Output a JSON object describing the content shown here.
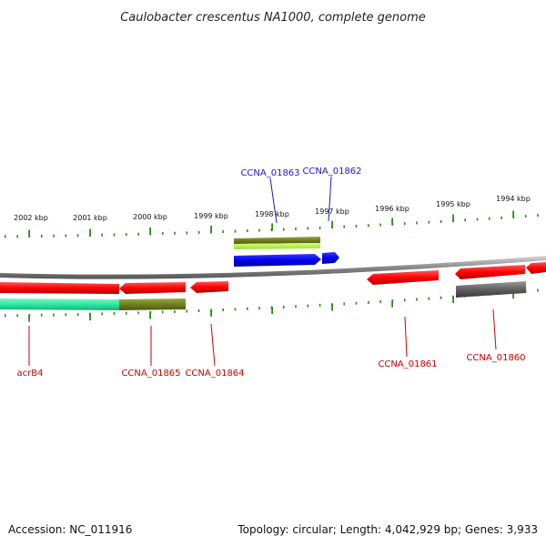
{
  "title": "Caulobacter crescentus NA1000, complete genome",
  "footer": {
    "accession": "Accession: NC_011916",
    "summary": "Topology: circular; Length: 4,042,929 bp; Genes: 3,933"
  },
  "ruler_labels": [
    "2002 kbp",
    "2001 kbp",
    "2000 kbp",
    "1999 kbp",
    "1998 kbp",
    "1997 kbp",
    "1996 kbp",
    "1995 kbp",
    "1994 kbp"
  ],
  "gene_labels": {
    "top": [
      "CCNA_01863",
      "CCNA_01862"
    ],
    "bottom": [
      "acrB4",
      "CCNA_01865",
      "CCNA_01864",
      "CCNA_01861",
      "CCNA_01860"
    ]
  },
  "colors": {
    "cds_red": "#ff1a1a",
    "cds_blue": "#0000ee",
    "olive": "#7a8a2a",
    "lime": "#b4ee3c",
    "teal": "#2ee8a0",
    "gray": "#666666",
    "tick_green": "#2a8a1a"
  }
}
